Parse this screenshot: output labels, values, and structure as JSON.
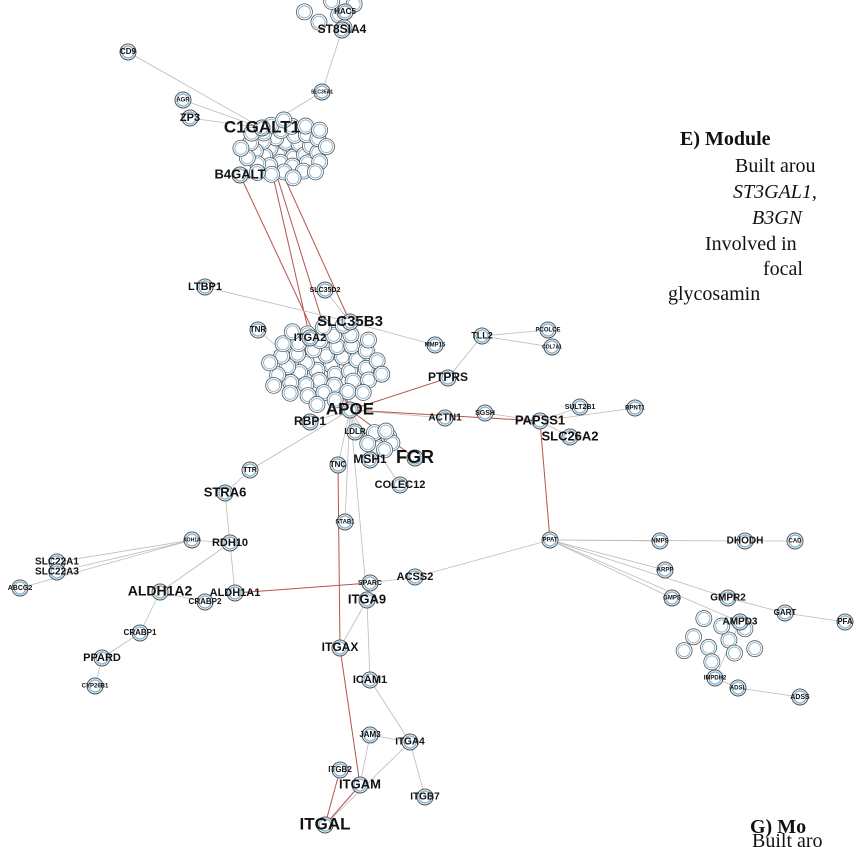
{
  "nodes": [
    {
      "label": "CD9"
    },
    {
      "label": "ST8SIA4"
    },
    {
      "label": "HAC5"
    },
    {
      "label": "SLC35A1"
    },
    {
      "label": "AGR"
    },
    {
      "label": "ZP3"
    },
    {
      "label": "C1GALT1"
    },
    {
      "label": "B4GALT"
    },
    {
      "label": "LTBP1"
    },
    {
      "label": "SLC35D2"
    },
    {
      "label": "SLC35B3"
    },
    {
      "label": "PCOLCE"
    },
    {
      "label": "COL7A1"
    },
    {
      "label": "TLL2"
    },
    {
      "label": "MMP15"
    },
    {
      "label": "PTPRS"
    },
    {
      "label": "ITGA2"
    },
    {
      "label": "TNR"
    },
    {
      "label": "ACTN1"
    },
    {
      "label": "SGSH"
    },
    {
      "label": "PAPSS1"
    },
    {
      "label": "SULT2B1"
    },
    {
      "label": "BPNT1"
    },
    {
      "label": "SLC26A2"
    },
    {
      "label": "APOE"
    },
    {
      "label": "RBP1"
    },
    {
      "label": "LDLR"
    },
    {
      "label": "MSH1"
    },
    {
      "label": "FGR"
    },
    {
      "label": "TNC"
    },
    {
      "label": "COLEC12"
    },
    {
      "label": "TTR"
    },
    {
      "label": "STRA6"
    },
    {
      "label": "STAB1"
    },
    {
      "label": "RDH10"
    },
    {
      "label": "ADH1A"
    },
    {
      "label": "SLC22A1"
    },
    {
      "label": "SLC22A3"
    },
    {
      "label": "ABCG2"
    },
    {
      "label": "ALDH1A2"
    },
    {
      "label": "ALDH1A1"
    },
    {
      "label": "CRABP2"
    },
    {
      "label": "CRABP1"
    },
    {
      "label": "PPARD"
    },
    {
      "label": "CYP26B1"
    },
    {
      "label": "ACSS2"
    },
    {
      "label": "SPARC"
    },
    {
      "label": "ITGA9"
    },
    {
      "label": "ITGAX"
    },
    {
      "label": "ICAM1"
    },
    {
      "label": "PPAT"
    },
    {
      "label": "NMPS"
    },
    {
      "label": "DHODH"
    },
    {
      "label": "CAD"
    },
    {
      "label": "ARPP"
    },
    {
      "label": "GMPS"
    },
    {
      "label": "GMPR2"
    },
    {
      "label": "GART"
    },
    {
      "label": "PFA"
    },
    {
      "label": "AMPD3"
    },
    {
      "label": "IMPDH2"
    },
    {
      "label": "ADSL"
    },
    {
      "label": "ADSS"
    },
    {
      "label": "JAM3"
    },
    {
      "label": "ITGA4"
    },
    {
      "label": "ITGB2"
    },
    {
      "label": "ITGAM"
    },
    {
      "label": "ITGB7"
    },
    {
      "label": "ITGAL"
    }
  ],
  "annotations": [
    {
      "text": "E) Module"
    },
    {
      "text": "Built arou"
    },
    {
      "text": "ST3GAL1,"
    },
    {
      "text": "B3GN"
    },
    {
      "text": "Involved in"
    },
    {
      "text": "focal"
    },
    {
      "text": "glycosamin"
    },
    {
      "text": "G) Mo"
    },
    {
      "text": "Built aro"
    }
  ]
}
